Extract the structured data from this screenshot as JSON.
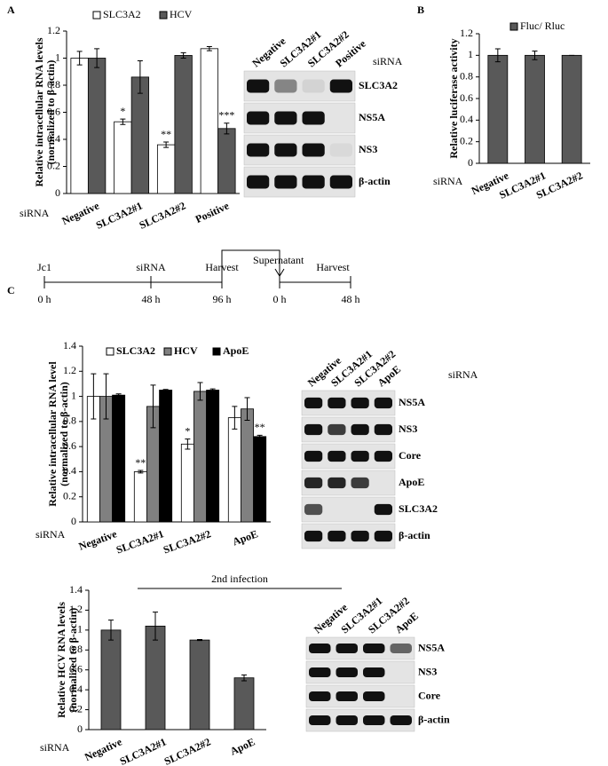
{
  "panels": [
    "A",
    "B",
    "C"
  ],
  "chart_data": [
    {
      "type": "bar",
      "ylabel": [
        "Relative intracellular RNA levels",
        "(normalized to β-actin)"
      ],
      "xlabel": "siRNA",
      "categories": [
        "Negative",
        "SLC3A2#1",
        "SLC3A2#2",
        "Positive"
      ],
      "series": [
        {
          "name": "SLC3A2",
          "color": "#ffffff",
          "values": [
            1,
            0.53,
            0.36,
            1.07
          ],
          "errors": [
            0.05,
            0.02,
            0.02,
            0.015
          ]
        },
        {
          "name": "HCV",
          "color": "#595959",
          "values": [
            1,
            0.86,
            1.02,
            0.48
          ],
          "errors": [
            0.07,
            0.12,
            0.02,
            0.04
          ]
        }
      ],
      "annotations": [
        {
          "text": "*",
          "series": 0,
          "index": 1
        },
        {
          "text": "**",
          "series": 0,
          "index": 2
        },
        {
          "text": "***",
          "series": 1,
          "index": 3
        }
      ],
      "ylim": [
        0,
        1.2
      ],
      "yticks": [
        0,
        0.2,
        0.4,
        0.6,
        0.8,
        1,
        1.2
      ],
      "legend": "top"
    },
    {
      "type": "bar",
      "ylabel": [
        "Relative luciferase activity"
      ],
      "xlabel": "siRNA",
      "categories": [
        "Negative",
        "SLC3A2#1",
        "SLC3A2#2"
      ],
      "series": [
        {
          "name": "Fluc/ Rluc",
          "color": "#595959",
          "values": [
            1,
            1,
            1
          ],
          "errors": [
            0.06,
            0.04,
            0
          ]
        }
      ],
      "ylim": [
        0,
        1.2
      ],
      "yticks": [
        0,
        0.2,
        0.4,
        0.6,
        0.8,
        1,
        1.2
      ],
      "legend": "top"
    },
    {
      "type": "bar",
      "ylabel": [
        "Relative intracellular RNA level",
        "(normalized to β-actin)"
      ],
      "xlabel": "siRNA",
      "categories": [
        "Negative",
        "SLC3A2#1",
        "SLC3A2#2",
        "ApoE"
      ],
      "series": [
        {
          "name": "SLC3A2",
          "color": "#ffffff",
          "values": [
            1,
            0.4,
            0.62,
            0.83
          ],
          "errors": [
            0.18,
            0.01,
            0.04,
            0.09
          ]
        },
        {
          "name": "HCV",
          "color": "#808080",
          "values": [
            1,
            0.92,
            1.04,
            0.9
          ],
          "errors": [
            0.18,
            0.17,
            0.07,
            0.09
          ]
        },
        {
          "name": "ApoE",
          "color": "#000000",
          "values": [
            1.01,
            1.05,
            1.05,
            0.68
          ],
          "errors": [
            0.01,
            0.005,
            0.01,
            0.01
          ]
        }
      ],
      "annotations": [
        {
          "text": "**",
          "series": 0,
          "index": 1
        },
        {
          "text": "*",
          "series": 0,
          "index": 2
        },
        {
          "text": "**",
          "series": 2,
          "index": 3
        }
      ],
      "ylim": [
        0,
        1.4
      ],
      "yticks": [
        0,
        0.2,
        0.4,
        0.6,
        0.8,
        1,
        1.2,
        1.4
      ],
      "legend": "top"
    },
    {
      "type": "bar",
      "title": "2nd infection",
      "ylabel": [
        "Relative HCV RNA levels",
        "(normalized to β-actin)"
      ],
      "xlabel": "siRNA",
      "categories": [
        "Negative",
        "SLC3A2#1",
        "SLC3A2#2",
        "ApoE"
      ],
      "series": [
        {
          "color": "#595959",
          "values": [
            1,
            1.04,
            0.9,
            0.52
          ],
          "errors": [
            0.1,
            0.14,
            0.005,
            0.03
          ]
        }
      ],
      "ylim": [
        0,
        1.4
      ],
      "yticks": [
        0,
        0.2,
        0.4,
        0.6,
        0.8,
        1,
        1.2,
        1.4
      ]
    }
  ],
  "blots": [
    {
      "lanes": [
        "Negative",
        "SLC3A2#1",
        "SLC3A2#2",
        "Positive"
      ],
      "label": "siRNA",
      "rows": [
        "SLC3A2",
        "NS5A",
        "NS3",
        "β-actin"
      ]
    },
    {
      "lanes": [
        "Negative",
        "SLC3A2#1",
        "SLC3A2#2",
        "ApoE"
      ],
      "label": "siRNA",
      "rows": [
        "NS5A",
        "NS3",
        "Core",
        "ApoE",
        "SLC3A2",
        "β-actin"
      ]
    },
    {
      "lanes": [
        "Negative",
        "SLC3A2#1",
        "SLC3A2#2",
        "ApoE"
      ],
      "rows": [
        "NS5A",
        "NS3",
        "Core",
        "β-actin"
      ]
    }
  ],
  "timeline": {
    "top": [
      "Jc1",
      "siRNA",
      "Harvest",
      "Harvest"
    ],
    "bottom": [
      "0 h",
      "48 h",
      "96 h",
      "0 h",
      "48 h"
    ],
    "transfer": "Supernatant"
  }
}
